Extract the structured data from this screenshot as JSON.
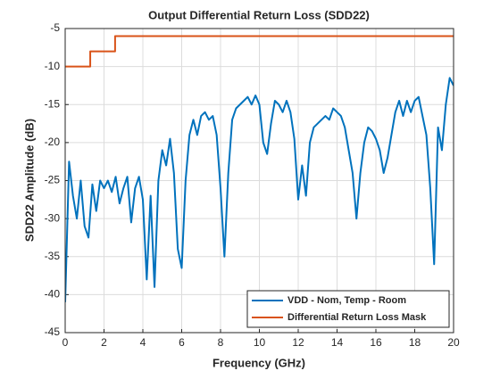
{
  "chart_data": {
    "type": "line",
    "title": "Output Differential Return Loss (SDD22)",
    "xlabel": "Frequency (GHz)",
    "ylabel": "SDD22 Amplitude (dB)",
    "xlim": [
      0,
      20
    ],
    "xticks": [
      0,
      2,
      4,
      6,
      8,
      10,
      12,
      14,
      16,
      18,
      20
    ],
    "ylim": [
      -45,
      -5
    ],
    "yticks": [
      -45,
      -40,
      -35,
      -30,
      -25,
      -20,
      -15,
      -10,
      -5
    ],
    "grid": true,
    "legend": "southeast",
    "series": [
      {
        "name": "VDD - Nom, Temp - Room",
        "color": "#0072BD",
        "x": [
          0,
          0.2,
          0.4,
          0.6,
          0.8,
          1,
          1.2,
          1.4,
          1.6,
          1.8,
          2,
          2.2,
          2.4,
          2.6,
          2.8,
          3,
          3.2,
          3.4,
          3.6,
          3.8,
          4,
          4.2,
          4.4,
          4.6,
          4.8,
          5,
          5.2,
          5.4,
          5.6,
          5.8,
          6,
          6.2,
          6.4,
          6.6,
          6.8,
          7,
          7.2,
          7.4,
          7.6,
          7.8,
          8,
          8.2,
          8.4,
          8.6,
          8.8,
          9,
          9.2,
          9.4,
          9.6,
          9.8,
          10,
          10.2,
          10.4,
          10.6,
          10.8,
          11,
          11.2,
          11.4,
          11.6,
          11.8,
          12,
          12.2,
          12.4,
          12.6,
          12.8,
          13,
          13.2,
          13.4,
          13.6,
          13.8,
          14,
          14.2,
          14.4,
          14.6,
          14.8,
          15,
          15.2,
          15.4,
          15.6,
          15.8,
          16,
          16.2,
          16.4,
          16.6,
          16.8,
          17,
          17.2,
          17.4,
          17.6,
          17.8,
          18,
          18.2,
          18.4,
          18.6,
          18.8,
          19,
          19.2,
          19.4,
          19.6,
          19.8,
          20
        ],
        "values": [
          -41,
          -22.5,
          -27,
          -30,
          -25,
          -31,
          -32.5,
          -25.5,
          -29,
          -25,
          -26,
          -25,
          -26.5,
          -24.5,
          -28,
          -26,
          -24.5,
          -30.5,
          -26,
          -24.5,
          -27.5,
          -38,
          -27,
          -39,
          -25,
          -21,
          -23,
          -19.5,
          -24,
          -34,
          -36.5,
          -25,
          -19,
          -17,
          -19,
          -16.5,
          -16,
          -17,
          -16.5,
          -19,
          -26,
          -35,
          -24,
          -17,
          -15.5,
          -15,
          -14.5,
          -14,
          -15,
          -13.8,
          -15,
          -20,
          -21.5,
          -17.5,
          -14.5,
          -15,
          -16,
          -14.5,
          -16,
          -19.5,
          -27.5,
          -23,
          -27,
          -20,
          -18,
          -17.5,
          -17,
          -16.5,
          -17,
          -15.5,
          -16,
          -16.5,
          -18,
          -21,
          -24,
          -30,
          -24,
          -20,
          -18,
          -18.5,
          -19.5,
          -21,
          -24,
          -22,
          -19,
          -16,
          -14.5,
          -16.5,
          -14.5,
          -16,
          -14.5,
          -14,
          -16.5,
          -19,
          -26,
          -36,
          -18,
          -21,
          -15,
          -11.5,
          -12.5
        ]
      },
      {
        "name": "Differential Return Loss Mask",
        "color": "#D95319",
        "x": [
          0,
          1.29,
          1.29,
          2.57,
          2.57,
          20
        ],
        "values": [
          -10,
          -10,
          -8,
          -8,
          -6,
          -6
        ]
      }
    ]
  }
}
